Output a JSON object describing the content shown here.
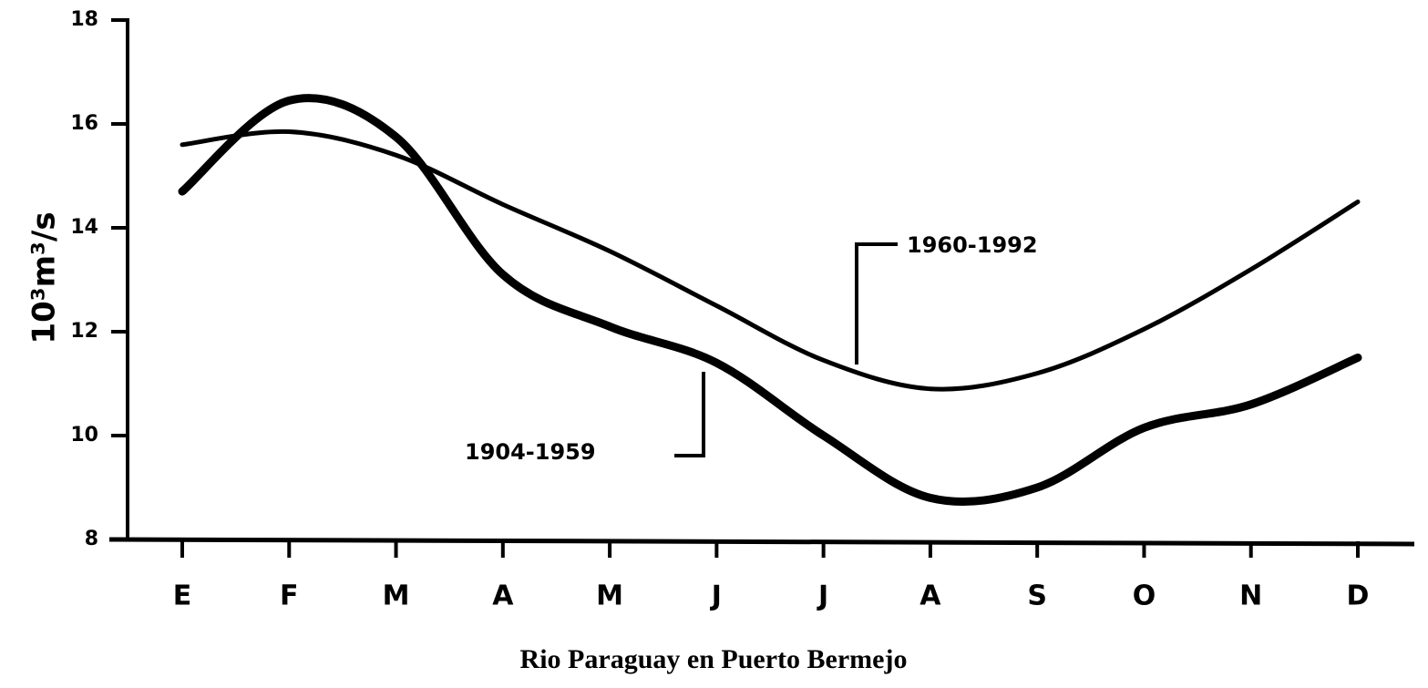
{
  "chart_data": {
    "type": "line",
    "title": "Rio Paraguay en Puerto Bermejo",
    "y_label": "10³m³/s",
    "categories": [
      "E",
      "F",
      "M",
      "A",
      "M",
      "J",
      "J",
      "A",
      "S",
      "O",
      "N",
      "D"
    ],
    "series": [
      {
        "name": "1904-1959",
        "color": "#000000",
        "values": [
          14.7,
          16.45,
          15.75,
          13.1,
          12.1,
          11.4,
          10.0,
          8.8,
          9.0,
          10.15,
          10.6,
          11.5
        ]
      },
      {
        "name": "1960-1992",
        "color": "#000000",
        "values": [
          15.6,
          15.85,
          15.4,
          14.45,
          13.55,
          12.5,
          11.45,
          10.9,
          11.2,
          12.05,
          13.2,
          14.5
        ]
      }
    ],
    "ylim": [
      8,
      18
    ],
    "yticks": [
      8,
      10,
      12,
      14,
      16,
      18
    ]
  }
}
